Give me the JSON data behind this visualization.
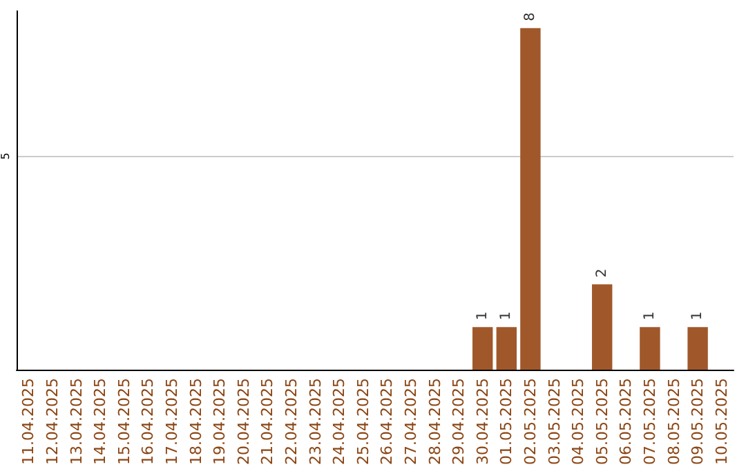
{
  "chart_data": {
    "type": "bar",
    "ylim": [
      0,
      8.4
    ],
    "yticks": [
      5
    ],
    "grid": "y",
    "data_labels": true,
    "categories": [
      "11.04.2025",
      "12.04.2025",
      "13.04.2025",
      "14.04.2025",
      "15.04.2025",
      "16.04.2025",
      "17.04.2025",
      "18.04.2025",
      "19.04.2025",
      "20.04.2025",
      "21.04.2025",
      "22.04.2025",
      "23.04.2025",
      "24.04.2025",
      "25.04.2025",
      "26.04.2025",
      "27.04.2025",
      "28.04.2025",
      "29.04.2025",
      "30.04.2025",
      "01.05.2025",
      "02.05.2025",
      "03.05.2025",
      "04.05.2025",
      "05.05.2025",
      "06.05.2025",
      "07.05.2025",
      "08.05.2025",
      "09.05.2025",
      "10.05.2025"
    ],
    "values": [
      null,
      null,
      null,
      null,
      null,
      null,
      null,
      null,
      null,
      null,
      null,
      null,
      null,
      null,
      null,
      null,
      null,
      null,
      null,
      1,
      1,
      8,
      null,
      null,
      2,
      null,
      1,
      null,
      1,
      null
    ],
    "color": "#a0582a"
  }
}
